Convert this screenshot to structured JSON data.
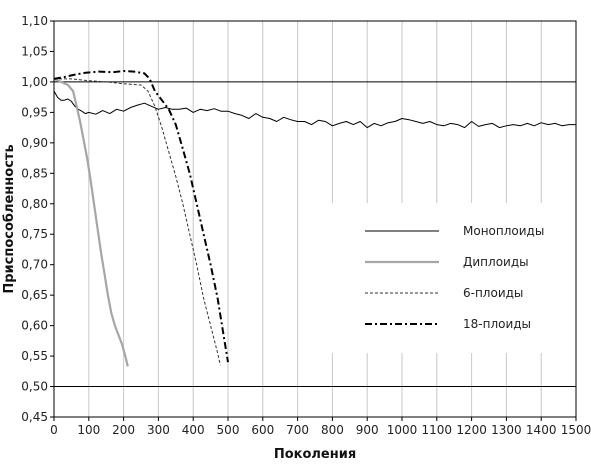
{
  "chart_data": {
    "type": "line",
    "xlabel": "Поколения",
    "ylabel": "Приспособленность",
    "xlim": [
      0,
      1500
    ],
    "ylim": [
      0.45,
      1.1
    ],
    "x_ticks": [
      "0",
      "100",
      "200",
      "300",
      "400",
      "500",
      "600",
      "700",
      "800",
      "900",
      "1000",
      "1100",
      "1200",
      "1300",
      "1400",
      "1500"
    ],
    "y_ticks": [
      "0,45",
      "0,50",
      "0,55",
      "0,60",
      "0,65",
      "0,70",
      "0,75",
      "0,80",
      "0,85",
      "0,90",
      "0,95",
      "1,00",
      "1,05",
      "1,10"
    ],
    "grid": "vertical",
    "reference_lines": [
      1.0,
      0.5
    ],
    "legend_placement": "right",
    "series": [
      {
        "name": "Моноплоиды",
        "color": "#000000",
        "x": [
          0,
          10,
          20,
          30,
          40,
          50,
          60,
          70,
          80,
          90,
          100,
          120,
          140,
          160,
          180,
          200,
          220,
          240,
          260,
          280,
          300,
          320,
          340,
          360,
          380,
          400,
          420,
          440,
          460,
          480,
          500,
          520,
          540,
          560,
          580,
          600,
          620,
          640,
          660,
          680,
          700,
          720,
          740,
          760,
          780,
          800,
          820,
          840,
          860,
          880,
          900,
          920,
          940,
          960,
          980,
          1000,
          1020,
          1040,
          1060,
          1080,
          1100,
          1120,
          1140,
          1160,
          1180,
          1200,
          1220,
          1240,
          1260,
          1280,
          1300,
          1320,
          1340,
          1360,
          1380,
          1400,
          1420,
          1440,
          1460,
          1480,
          1500
        ],
        "values": [
          0.985,
          0.975,
          0.97,
          0.97,
          0.972,
          0.968,
          0.96,
          0.955,
          0.952,
          0.948,
          0.95,
          0.947,
          0.953,
          0.948,
          0.955,
          0.952,
          0.958,
          0.962,
          0.965,
          0.96,
          0.955,
          0.958,
          0.955,
          0.955,
          0.957,
          0.95,
          0.955,
          0.953,
          0.956,
          0.952,
          0.952,
          0.948,
          0.945,
          0.94,
          0.948,
          0.942,
          0.94,
          0.935,
          0.942,
          0.938,
          0.935,
          0.935,
          0.93,
          0.937,
          0.935,
          0.928,
          0.932,
          0.935,
          0.93,
          0.935,
          0.925,
          0.932,
          0.928,
          0.933,
          0.935,
          0.94,
          0.938,
          0.935,
          0.932,
          0.935,
          0.93,
          0.928,
          0.932,
          0.93,
          0.925,
          0.935,
          0.927,
          0.93,
          0.932,
          0.925,
          0.928,
          0.93,
          0.928,
          0.932,
          0.928,
          0.933,
          0.93,
          0.932,
          0.928,
          0.93,
          0.93
        ]
      },
      {
        "name": "Диплоиды",
        "color": "#a6a6a6",
        "x": [
          0,
          20,
          40,
          55,
          65,
          75,
          85,
          95,
          105,
          115,
          125,
          135,
          145,
          155,
          165,
          175,
          185,
          195,
          205,
          212
        ],
        "values": [
          1.005,
          1.0,
          0.995,
          0.985,
          0.96,
          0.935,
          0.905,
          0.875,
          0.84,
          0.8,
          0.76,
          0.72,
          0.685,
          0.65,
          0.62,
          0.6,
          0.585,
          0.57,
          0.55,
          0.533
        ]
      },
      {
        "name": "6-плоиды",
        "color": "#333333",
        "x": [
          0,
          50,
          100,
          150,
          200,
          250,
          270,
          290,
          310,
          330,
          350,
          370,
          390,
          410,
          430,
          450,
          470,
          478
        ],
        "values": [
          1.005,
          1.005,
          1.002,
          1.0,
          0.997,
          0.995,
          0.985,
          0.96,
          0.925,
          0.885,
          0.845,
          0.8,
          0.75,
          0.7,
          0.645,
          0.6,
          0.555,
          0.535
        ]
      },
      {
        "name": "18-плоиды",
        "color": "#000000",
        "x": [
          0,
          30,
          60,
          90,
          130,
          170,
          200,
          230,
          260,
          275,
          290,
          310,
          330,
          350,
          370,
          390,
          410,
          430,
          450,
          470,
          490,
          500
        ],
        "values": [
          1.005,
          1.008,
          1.012,
          1.015,
          1.017,
          1.016,
          1.018,
          1.017,
          1.014,
          1.005,
          0.985,
          0.97,
          0.955,
          0.93,
          0.89,
          0.85,
          0.8,
          0.75,
          0.7,
          0.645,
          0.575,
          0.54
        ]
      }
    ]
  }
}
